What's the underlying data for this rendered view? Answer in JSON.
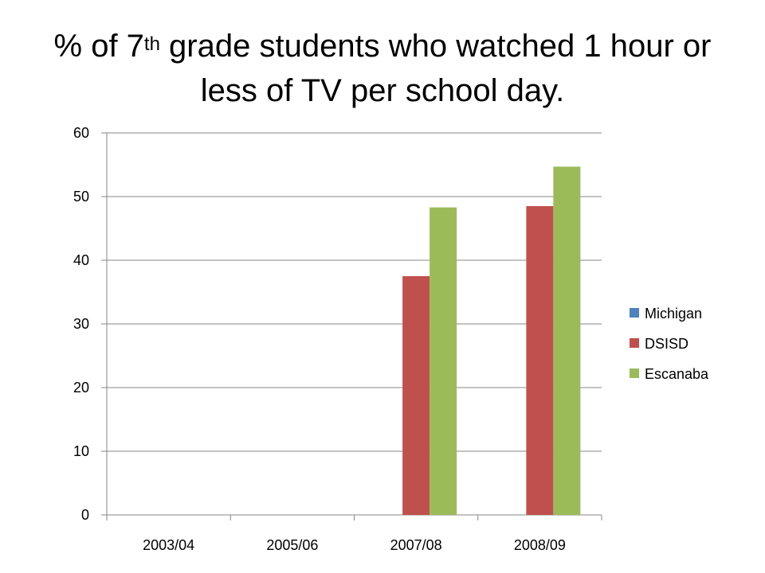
{
  "title": {
    "prefix": "%  of 7",
    "superscript": "th",
    "line1_rest": " grade students who watched 1 hour or",
    "line2": "less of TV per school day."
  },
  "chart_data": {
    "type": "bar",
    "title": "%  of 7th grade students who watched 1 hour or less of TV per school day.",
    "xlabel": "",
    "ylabel": "",
    "categories": [
      "2003/04",
      "2005/06",
      "2007/08",
      "2008/09"
    ],
    "series": [
      {
        "name": "Michigan",
        "color": "#4f81bd",
        "values": [
          null,
          null,
          null,
          null
        ]
      },
      {
        "name": "DSISD",
        "color": "#c0504d",
        "values": [
          null,
          null,
          37.5,
          48.5
        ]
      },
      {
        "name": "Escanaba",
        "color": "#9bbb59",
        "values": [
          null,
          null,
          48.3,
          54.7
        ]
      }
    ],
    "ylim": [
      0,
      60
    ],
    "yticks": [
      0,
      10,
      20,
      30,
      40,
      50,
      60
    ],
    "grid": true,
    "legend_position": "right"
  }
}
